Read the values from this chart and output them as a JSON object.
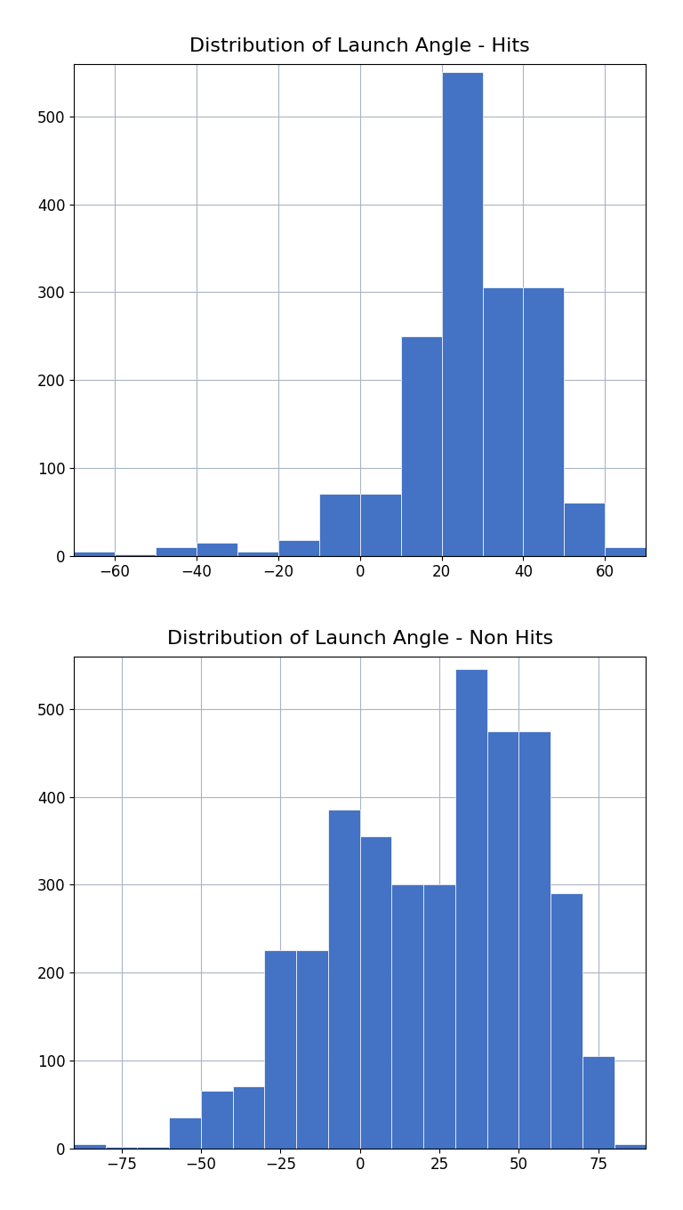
{
  "hits": {
    "title": "Distribution of Launch Angle - Hits",
    "bar_color": "#4472C4",
    "bin_edges": [
      -70,
      -60,
      -50,
      -40,
      -30,
      -20,
      -10,
      0,
      10,
      20,
      30,
      40,
      50,
      60,
      70
    ],
    "counts": [
      5,
      2,
      10,
      15,
      5,
      18,
      70,
      70,
      250,
      550,
      305,
      305,
      60,
      10
    ],
    "xlim": [
      -70,
      70
    ],
    "ylim": [
      0,
      560
    ],
    "yticks": [
      0,
      100,
      200,
      300,
      400,
      500
    ],
    "xticks": [
      -60,
      -40,
      -20,
      0,
      20,
      40,
      60
    ]
  },
  "nonhits": {
    "title": "Distribution of Launch Angle - Non Hits",
    "bar_color": "#4472C4",
    "bin_edges": [
      -90,
      -80,
      -70,
      -60,
      -50,
      -40,
      -30,
      -20,
      -10,
      0,
      10,
      20,
      30,
      40,
      50,
      60,
      70,
      80,
      90
    ],
    "counts": [
      5,
      2,
      2,
      35,
      65,
      70,
      225,
      225,
      385,
      355,
      300,
      300,
      545,
      475,
      475,
      290,
      105,
      5
    ],
    "xlim": [
      -90,
      90
    ],
    "ylim": [
      0,
      560
    ],
    "yticks": [
      0,
      100,
      200,
      300,
      400,
      500
    ],
    "xticks": [
      -75,
      -50,
      -25,
      0,
      25,
      50,
      75
    ]
  },
  "fig_width": 7.68,
  "fig_height": 13.6,
  "title_fontsize": 16,
  "background_color": "#ffffff",
  "grid_color": "#aab4c4",
  "tick_fontsize": 12
}
